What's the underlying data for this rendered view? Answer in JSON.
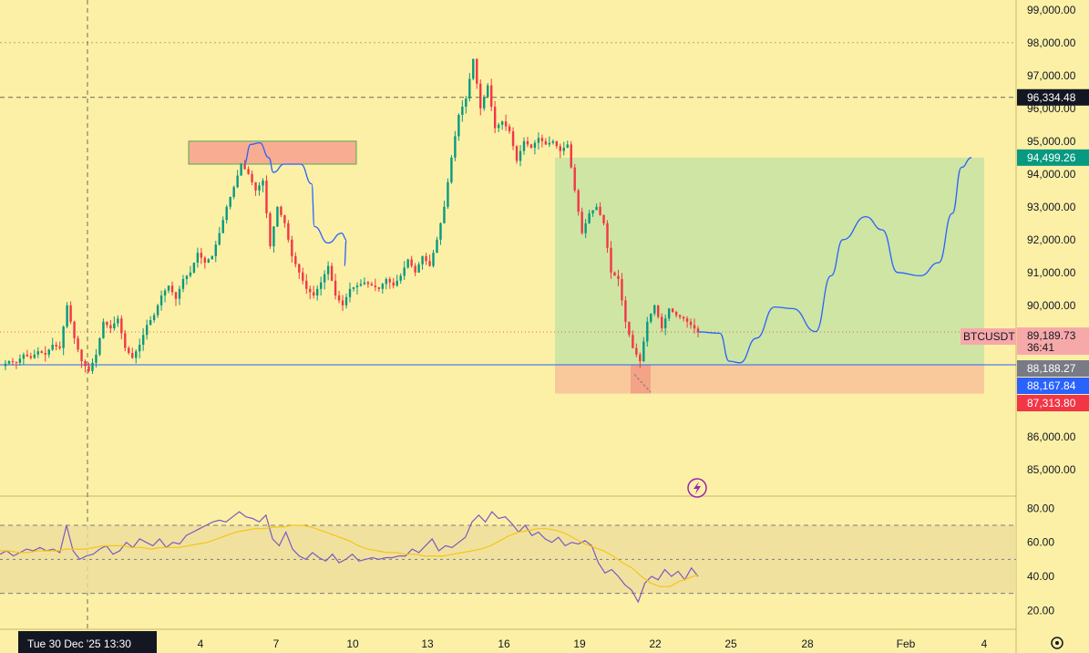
{
  "chart_data": [
    {
      "type": "candlestick",
      "symbol": "BTCUSDT",
      "price_axis": {
        "ticks": [
          "99,000.00",
          "98,000.00",
          "97,000.00",
          "96,000.00",
          "95,000.00",
          "94,000.00",
          "93,000.00",
          "92,000.00",
          "91,000.00",
          "90,000.00",
          "89,000.00",
          "88,000.00",
          "87,000.00",
          "86,000.00",
          "85,000.00"
        ],
        "range": [
          84300,
          99300
        ]
      },
      "time_axis": {
        "labels": [
          "4",
          "7",
          "10",
          "13",
          "16",
          "19",
          "22",
          "25",
          "28",
          "Feb",
          "4"
        ],
        "crosshair_label": "Tue 30 Dec '25   13:30"
      },
      "price_labels": [
        {
          "value": "96,334.48",
          "color": "#131722",
          "text_color": "#ffffff"
        },
        {
          "value": "94,499.26",
          "color": "#089981",
          "text_color": "#ffffff"
        },
        {
          "value": "89,189.73",
          "countdown": "36:41",
          "color": "#f7a9a9",
          "text_color": "#131722"
        },
        {
          "value": "88,188.27",
          "color": "#787b86",
          "text_color": "#ffffff"
        },
        {
          "value": "88,167.84",
          "color": "#2962ff",
          "text_color": "#ffffff"
        },
        {
          "value": "87,313.80",
          "color": "#f23645",
          "text_color": "#ffffff"
        }
      ],
      "symbol_label": "BTCUSDT",
      "levels": {
        "horizontal_line": 88188.27,
        "crosshair_dashed": 96334.48,
        "dotted_price": 89189.73
      },
      "path": [
        [
          0,
          88150
        ],
        [
          2,
          88300
        ],
        [
          4,
          88250
        ],
        [
          6,
          88500
        ],
        [
          8,
          88400
        ],
        [
          10,
          88600
        ],
        [
          12,
          88500
        ],
        [
          14,
          88800
        ],
        [
          16,
          88700
        ],
        [
          18,
          90000
        ],
        [
          20,
          89000
        ],
        [
          22,
          88300
        ],
        [
          24,
          88000
        ],
        [
          26,
          88500
        ],
        [
          28,
          89500
        ],
        [
          30,
          89300
        ],
        [
          32,
          89600
        ],
        [
          34,
          88700
        ],
        [
          36,
          88400
        ],
        [
          38,
          88800
        ],
        [
          40,
          89400
        ],
        [
          42,
          89700
        ],
        [
          44,
          90300
        ],
        [
          46,
          90600
        ],
        [
          48,
          90200
        ],
        [
          50,
          90800
        ],
        [
          52,
          91000
        ],
        [
          54,
          91600
        ],
        [
          56,
          91300
        ],
        [
          58,
          91500
        ],
        [
          60,
          92200
        ],
        [
          62,
          93000
        ],
        [
          64,
          93600
        ],
        [
          66,
          94300
        ],
        [
          68,
          94000
        ],
        [
          70,
          93500
        ],
        [
          72,
          93800
        ],
        [
          74,
          91800
        ],
        [
          76,
          93000
        ],
        [
          78,
          92500
        ],
        [
          80,
          91500
        ],
        [
          82,
          91000
        ],
        [
          84,
          90500
        ],
        [
          86,
          90300
        ],
        [
          88,
          90700
        ],
        [
          90,
          91200
        ],
        [
          92,
          90300
        ],
        [
          94,
          90000
        ],
        [
          96,
          90500
        ],
        [
          98,
          90600
        ],
        [
          100,
          90700
        ],
        [
          102,
          90600
        ],
        [
          104,
          90500
        ],
        [
          106,
          90800
        ],
        [
          108,
          90600
        ],
        [
          110,
          90900
        ],
        [
          112,
          91400
        ],
        [
          114,
          91000
        ],
        [
          116,
          91500
        ],
        [
          118,
          91200
        ],
        [
          120,
          92000
        ],
        [
          122,
          93000
        ],
        [
          124,
          94500
        ],
        [
          126,
          95800
        ],
        [
          128,
          96300
        ],
        [
          130,
          97500
        ],
        [
          132,
          96000
        ],
        [
          134,
          96700
        ],
        [
          136,
          95400
        ],
        [
          138,
          95600
        ],
        [
          140,
          95300
        ],
        [
          142,
          94400
        ],
        [
          144,
          95000
        ],
        [
          146,
          94800
        ],
        [
          148,
          95100
        ],
        [
          150,
          94900
        ],
        [
          152,
          95000
        ],
        [
          154,
          94700
        ],
        [
          156,
          94900
        ],
        [
          158,
          93500
        ],
        [
          160,
          92200
        ],
        [
          162,
          92800
        ],
        [
          164,
          93000
        ],
        [
          166,
          92500
        ],
        [
          168,
          91000
        ],
        [
          170,
          90800
        ],
        [
          172,
          89500
        ],
        [
          174,
          88700
        ],
        [
          176,
          88300
        ],
        [
          178,
          89500
        ],
        [
          180,
          90000
        ],
        [
          182,
          89300
        ],
        [
          184,
          89900
        ],
        [
          186,
          89700
        ],
        [
          188,
          89600
        ],
        [
          190,
          89400
        ],
        [
          192,
          89190
        ]
      ],
      "rectangles": [
        {
          "name": "resistance-zone",
          "x0": 72,
          "x1": 130,
          "y0": 94300,
          "y1": 95000,
          "fill": "#f7a48f",
          "stroke": "#4caf50"
        },
        {
          "name": "profit-zone",
          "x0": 210,
          "x1": 466,
          "y0": 88188,
          "y1": 94499,
          "fill": "#c7e3a2"
        },
        {
          "name": "stop-zone",
          "x0": 210,
          "x1": 466,
          "y0": 87313,
          "y1": 88188,
          "fill": "#f8c49a"
        }
      ],
      "projection_path": [
        [
          192,
          89190
        ],
        [
          200,
          89100
        ],
        [
          208,
          88200
        ],
        [
          216,
          88600
        ],
        [
          222,
          89700
        ],
        [
          230,
          89900
        ],
        [
          238,
          89600
        ],
        [
          244,
          91000
        ],
        [
          250,
          91900
        ],
        [
          256,
          92400
        ],
        [
          262,
          92500
        ],
        [
          268,
          91700
        ],
        [
          274,
          90900
        ],
        [
          280,
          91000
        ],
        [
          286,
          91500
        ],
        [
          292,
          92800
        ],
        [
          300,
          94000
        ],
        [
          306,
          94499
        ]
      ],
      "pattern_curve": [
        [
          96,
          94300
        ],
        [
          98,
          94900
        ],
        [
          100,
          94800
        ],
        [
          102,
          94300
        ],
        [
          104,
          93900
        ],
        [
          106,
          94100
        ],
        [
          108,
          93700
        ],
        [
          110,
          92500
        ],
        [
          112,
          92000
        ],
        [
          114,
          91900
        ],
        [
          116,
          92200
        ],
        [
          118,
          92000
        ]
      ]
    },
    {
      "type": "line",
      "name": "rsi",
      "ylim": [
        10,
        85
      ],
      "ticks": [
        "80.00",
        "60.00",
        "40.00",
        "20.00"
      ],
      "bands": [
        70,
        50,
        30
      ],
      "rsi": [
        53,
        55,
        52,
        54,
        56,
        55,
        57,
        55,
        56,
        54,
        70,
        55,
        50,
        52,
        53,
        56,
        58,
        53,
        55,
        60,
        57,
        62,
        60,
        58,
        62,
        57,
        60,
        59,
        64,
        66,
        68,
        70,
        72,
        73,
        72,
        75,
        78,
        75,
        74,
        72,
        76,
        62,
        58,
        66,
        56,
        52,
        50,
        54,
        51,
        49,
        53,
        48,
        50,
        53,
        49,
        50,
        51,
        50,
        51,
        51,
        52,
        52,
        56,
        54,
        58,
        62,
        55,
        58,
        57,
        60,
        63,
        72,
        76,
        72,
        78,
        74,
        75,
        71,
        66,
        70,
        64,
        66,
        62,
        60,
        63,
        58,
        60,
        59,
        61,
        58,
        48,
        42,
        44,
        40,
        35,
        32,
        25,
        36,
        40,
        38,
        44,
        40,
        43,
        38,
        45,
        40
      ],
      "ma": [
        55,
        55,
        54,
        54,
        55,
        55,
        55,
        56,
        56,
        56,
        57,
        58,
        58,
        58,
        57,
        57,
        56,
        57,
        57,
        57,
        58,
        59,
        60,
        62,
        64,
        66,
        67,
        68,
        68,
        69,
        69,
        70,
        70,
        69,
        67,
        65,
        63,
        61,
        58,
        56,
        55,
        54,
        54,
        53,
        53,
        52,
        52,
        52,
        53,
        54,
        55,
        56,
        58,
        61,
        64,
        66,
        67,
        68,
        68,
        67,
        65,
        62,
        59,
        57,
        55,
        52,
        48,
        45,
        40,
        36,
        34,
        34,
        37,
        39,
        41
      ]
    }
  ],
  "toolbar": {
    "settings_icon": "gear-icon",
    "flash_icon": "lightning-icon"
  }
}
